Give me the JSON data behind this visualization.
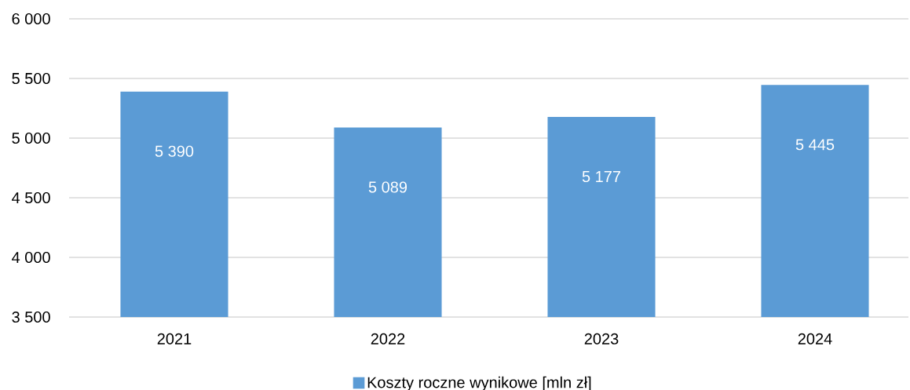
{
  "chart_data": {
    "type": "bar",
    "categories": [
      "2021",
      "2022",
      "2023",
      "2024"
    ],
    "series": [
      {
        "name": "Koszty roczne wynikowe [mln zł]",
        "color": "#5b9bd5",
        "values": [
          5390,
          5089,
          5177,
          5445
        ],
        "value_labels": [
          "5 390",
          "5 089",
          "5 177",
          "5 445"
        ]
      }
    ],
    "ylim": [
      3500,
      6000
    ],
    "yticks": [
      {
        "value": 3500,
        "label": "3 500"
      },
      {
        "value": 4000,
        "label": "4 000"
      },
      {
        "value": 4500,
        "label": "4 500"
      },
      {
        "value": 5000,
        "label": "5 000"
      },
      {
        "value": 5500,
        "label": "5 500"
      },
      {
        "value": 6000,
        "label": "6 000"
      }
    ],
    "grid": "y",
    "legend": "bottom"
  }
}
